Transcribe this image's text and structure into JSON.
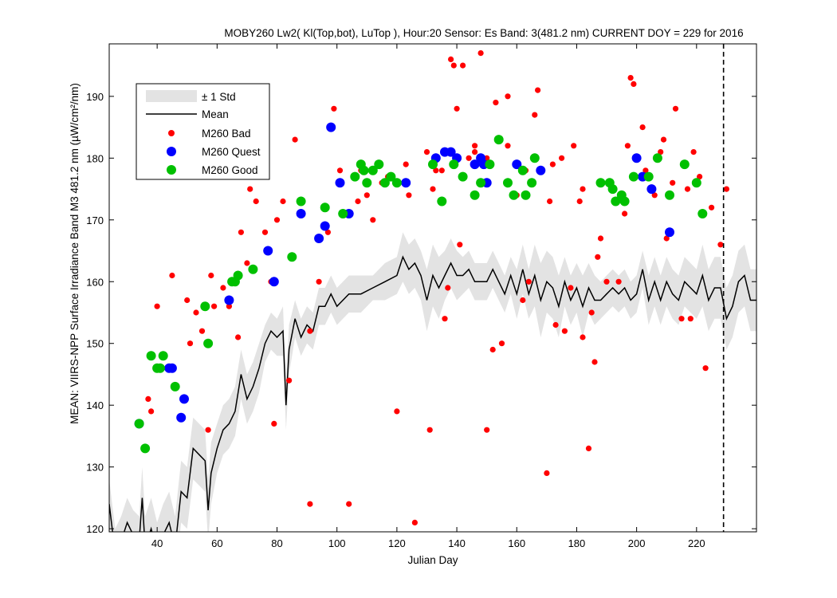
{
  "chart_data": {
    "type": "scatter",
    "title": "MOBY260   Lw2( Kl(Top,bot), LuTop ),   Hour:20 Sensor: Es Band: 3(481.2 nm)   CURRENT DOY = 229 for 2016",
    "xlabel": "Julian Day",
    "ylabel": "MEAN: VIIRS-NPP Surface Irradiance Band M3 481.2 nm (µW/cm²/nm)",
    "xlim": [
      24,
      240
    ],
    "ylim": [
      119.5,
      198.5
    ],
    "x_ticks": [
      40,
      60,
      80,
      100,
      120,
      140,
      160,
      180,
      200,
      220
    ],
    "y_ticks": [
      120,
      130,
      140,
      150,
      160,
      170,
      180,
      190
    ],
    "current_doy": 229,
    "grid": false,
    "legend_position": "top-left",
    "legend": [
      {
        "label": "± 1 Std",
        "kind": "band",
        "color": "#e3e3e3"
      },
      {
        "label": "Mean",
        "kind": "line",
        "color": "#000000"
      },
      {
        "label": "M260 Bad",
        "kind": "marker",
        "color": "#ff0000"
      },
      {
        "label": "M260 Quest",
        "kind": "marker",
        "color": "#0000ff"
      },
      {
        "label": "M260 Good",
        "kind": "marker",
        "color": "#00c000"
      }
    ],
    "mean_series": {
      "x": [
        24,
        26,
        28,
        30,
        32,
        34,
        35,
        36,
        38,
        40,
        42,
        44,
        46,
        48,
        50,
        52,
        54,
        56,
        57,
        58,
        60,
        62,
        64,
        66,
        68,
        70,
        72,
        74,
        76,
        78,
        80,
        82,
        83,
        84,
        86,
        88,
        90,
        92,
        94,
        96,
        98,
        100,
        104,
        108,
        112,
        116,
        120,
        122,
        124,
        126,
        128,
        130,
        132,
        134,
        136,
        138,
        140,
        142,
        144,
        146,
        148,
        150,
        152,
        154,
        156,
        158,
        160,
        162,
        164,
        166,
        168,
        170,
        172,
        174,
        176,
        178,
        180,
        182,
        184,
        186,
        188,
        190,
        192,
        194,
        196,
        198,
        200,
        202,
        204,
        206,
        208,
        210,
        212,
        214,
        216,
        218,
        220,
        222,
        224,
        226,
        228,
        230,
        232,
        234,
        236,
        238,
        240
      ],
      "mean": [
        124,
        116,
        118,
        121,
        119,
        118,
        125,
        117,
        120,
        116,
        119,
        121,
        117,
        126,
        125,
        133,
        132,
        131,
        123,
        129,
        133,
        136,
        137,
        139,
        145,
        141,
        143,
        146,
        150,
        152,
        151,
        152,
        140,
        149,
        154,
        151,
        153,
        152,
        156,
        156,
        158,
        156,
        158,
        158,
        159,
        160,
        161,
        164,
        162,
        163,
        161,
        157,
        161,
        159,
        161,
        163,
        161,
        161,
        162,
        160,
        160,
        160,
        162,
        160,
        158,
        161,
        158,
        162,
        158,
        161,
        157,
        160,
        159,
        156,
        160,
        157,
        159,
        156,
        159,
        157,
        157,
        158,
        159,
        158,
        159,
        157,
        158,
        162,
        157,
        160,
        157,
        160,
        158,
        157,
        160,
        159,
        158,
        161,
        157,
        159,
        159,
        154,
        156,
        160,
        161,
        157,
        157
      ],
      "std": [
        4,
        4,
        4,
        4,
        4,
        4,
        5,
        5,
        5,
        5,
        5,
        5,
        5,
        5,
        5,
        5,
        5,
        5,
        5,
        5,
        4,
        4,
        4,
        4,
        4,
        4,
        4,
        4,
        3,
        3,
        3,
        4,
        4,
        4,
        3,
        3,
        3,
        3,
        3,
        3,
        3,
        3,
        3,
        3,
        2,
        3,
        3,
        4,
        4,
        4,
        4,
        5,
        5,
        5,
        4,
        4,
        4,
        3,
        3,
        3,
        3,
        3,
        3,
        3,
        3,
        3,
        4,
        4,
        4,
        5,
        6,
        5,
        5,
        5,
        4,
        4,
        4,
        5,
        4,
        4,
        3,
        3,
        3,
        3,
        3,
        3,
        3,
        3,
        4,
        4,
        4,
        4,
        4,
        4,
        4,
        4,
        4,
        5,
        5,
        5,
        5,
        5,
        5,
        5,
        5,
        5,
        5
      ]
    },
    "series": [
      {
        "name": "M260 Bad",
        "x": [
          37,
          38,
          40,
          45,
          50,
          51,
          53,
          55,
          57,
          58,
          59,
          62,
          64,
          67,
          68,
          70,
          71,
          73,
          76,
          78,
          79,
          80,
          82,
          84,
          86,
          91,
          91,
          94,
          97,
          99,
          101,
          104,
          107,
          108,
          110,
          112,
          115,
          117,
          120,
          123,
          124,
          126,
          130,
          131,
          132,
          133,
          135,
          136,
          137,
          138,
          139,
          140,
          141,
          142,
          144,
          146,
          146,
          148,
          150,
          150,
          152,
          153,
          155,
          157,
          157,
          160,
          162,
          163,
          164,
          166,
          167,
          170,
          171,
          172,
          173,
          175,
          176,
          178,
          179,
          181,
          182,
          182,
          184,
          185,
          186,
          187,
          188,
          190,
          191,
          192,
          194,
          196,
          197,
          198,
          199,
          202,
          203,
          206,
          208,
          209,
          210,
          212,
          213,
          215,
          217,
          218,
          219,
          221,
          223,
          225,
          228,
          230
        ],
        "y": [
          141,
          139,
          156,
          161,
          157,
          150,
          155,
          152,
          136,
          161,
          156,
          159,
          156,
          151,
          168,
          163,
          175,
          173,
          168,
          160,
          137,
          170,
          173,
          144,
          183,
          152,
          124,
          160,
          168,
          188,
          178,
          124,
          173,
          178,
          174,
          170,
          176,
          177,
          139,
          179,
          174,
          121,
          181,
          136,
          175,
          178,
          178,
          154,
          159,
          196,
          195,
          188,
          166,
          195,
          180,
          181,
          182,
          197,
          180,
          136,
          149,
          189,
          150,
          190,
          182,
          174,
          157,
          178,
          160,
          187,
          191,
          129,
          173,
          179,
          153,
          180,
          152,
          159,
          182,
          173,
          151,
          175,
          133,
          155,
          147,
          164,
          167,
          160,
          176,
          175,
          160,
          171,
          182,
          193,
          192,
          185,
          178,
          174,
          181,
          183,
          167,
          176,
          188,
          154,
          175,
          154,
          181,
          177,
          146,
          172,
          166,
          175
        ]
      },
      {
        "name": "M260 Quest",
        "x": [
          34,
          44,
          45,
          48,
          49,
          64,
          77,
          79,
          88,
          94,
          96,
          98,
          101,
          104,
          123,
          133,
          136,
          138,
          140,
          146,
          149,
          148,
          150,
          160,
          168,
          200,
          202,
          205,
          211
        ],
        "y": [
          137,
          146,
          146,
          138,
          141,
          157,
          165,
          160,
          171,
          167,
          169,
          185,
          176,
          171,
          176,
          180,
          181,
          181,
          180,
          179,
          179,
          180,
          176,
          179,
          178,
          180,
          177,
          175,
          168
        ]
      },
      {
        "name": "M260 Good",
        "x": [
          34,
          36,
          38,
          40,
          41,
          42,
          46,
          56,
          57,
          65,
          66,
          67,
          72,
          85,
          88,
          96,
          102,
          106,
          108,
          109,
          110,
          112,
          114,
          116,
          118,
          120,
          132,
          135,
          139,
          142,
          146,
          148,
          151,
          154,
          157,
          159,
          162,
          163,
          165,
          166,
          188,
          191,
          192,
          193,
          195,
          196,
          199,
          204,
          207,
          211,
          216,
          220,
          222
        ],
        "y": [
          137,
          133,
          148,
          146,
          146,
          148,
          143,
          156,
          150,
          160,
          160,
          161,
          162,
          164,
          173,
          172,
          171,
          177,
          179,
          178,
          176,
          178,
          179,
          176,
          177,
          176,
          179,
          173,
          179,
          177,
          174,
          176,
          179,
          183,
          176,
          174,
          178,
          174,
          176,
          180,
          176,
          176,
          175,
          173,
          174,
          173,
          177,
          177,
          180,
          174,
          179,
          176,
          171
        ]
      }
    ]
  }
}
